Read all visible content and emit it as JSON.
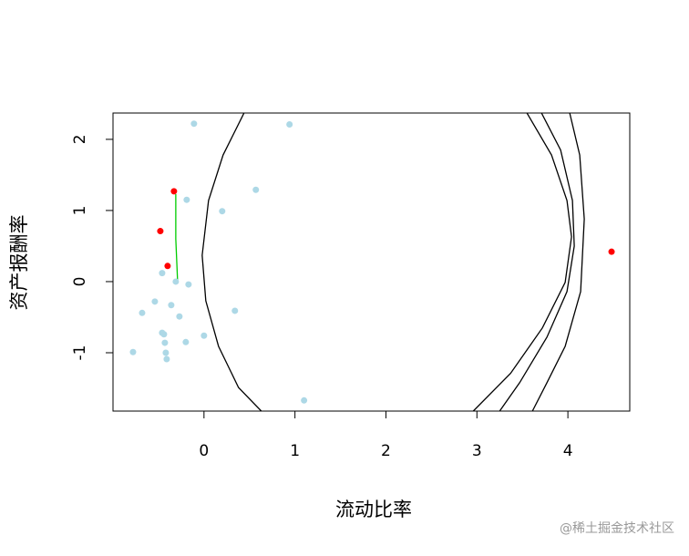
{
  "chart_data": {
    "type": "scatter",
    "xlabel": "流动比率",
    "ylabel": "资产报酬率",
    "xlim": [
      -1,
      4.68
    ],
    "ylim": [
      -1.82,
      2.37
    ],
    "xticks": [
      0,
      1,
      2,
      3,
      4
    ],
    "yticks": [
      -1,
      0,
      1,
      2
    ],
    "series": [
      {
        "color": "#add8e6",
        "x": [
          -0.11,
          0.94,
          0.57,
          -0.19,
          0.2,
          -0.46,
          -0.31,
          -0.17,
          -0.54,
          -0.36,
          -0.68,
          0.34,
          -0.27,
          -0.46,
          -0.44,
          0.0,
          -0.2,
          -0.43,
          -0.78,
          -0.42,
          -0.41,
          1.1
        ],
        "values": [
          2.22,
          2.21,
          1.29,
          1.15,
          0.99,
          0.12,
          0.0,
          -0.04,
          -0.28,
          -0.33,
          -0.44,
          -0.41,
          -0.49,
          -0.72,
          -0.74,
          -0.76,
          -0.85,
          -0.86,
          -0.99,
          -1.0,
          -1.09,
          -1.67
        ]
      },
      {
        "color": "#ff0000",
        "x": [
          -0.33,
          -0.48,
          -0.4,
          4.48
        ],
        "values": [
          1.27,
          0.71,
          0.22,
          0.42
        ]
      }
    ],
    "lines": [
      {
        "color": "#00cc00",
        "x": [
          -0.31,
          -0.31,
          -0.29
        ],
        "values": [
          1.23,
          0.6,
          0.0
        ]
      },
      {
        "color": "#000000",
        "x": [
          0.44,
          0.21,
          0.05,
          -0.02,
          0.02,
          0.16,
          0.38,
          0.63
        ],
        "values": [
          2.37,
          1.78,
          1.14,
          0.37,
          -0.27,
          -0.91,
          -1.49,
          -1.82
        ]
      },
      {
        "color": "#000000",
        "x": [
          3.55,
          3.82,
          3.99,
          4.04,
          3.97,
          3.72,
          3.37,
          2.96
        ],
        "values": [
          2.37,
          1.78,
          1.14,
          0.63,
          -0.01,
          -0.65,
          -1.29,
          -1.82
        ]
      },
      {
        "color": "#000000",
        "x": [
          3.71,
          3.92,
          4.05,
          4.07,
          3.99,
          3.77,
          3.47,
          3.25
        ],
        "values": [
          2.37,
          1.85,
          1.14,
          0.5,
          -0.14,
          -0.78,
          -1.42,
          -1.82
        ]
      },
      {
        "color": "#000000",
        "x": [
          4.02,
          4.13,
          4.18,
          4.14,
          3.97,
          3.77,
          3.61
        ],
        "values": [
          2.37,
          1.78,
          0.88,
          -0.14,
          -0.91,
          -1.42,
          -1.82
        ]
      }
    ]
  },
  "watermark": "@稀土掘金技术社区"
}
